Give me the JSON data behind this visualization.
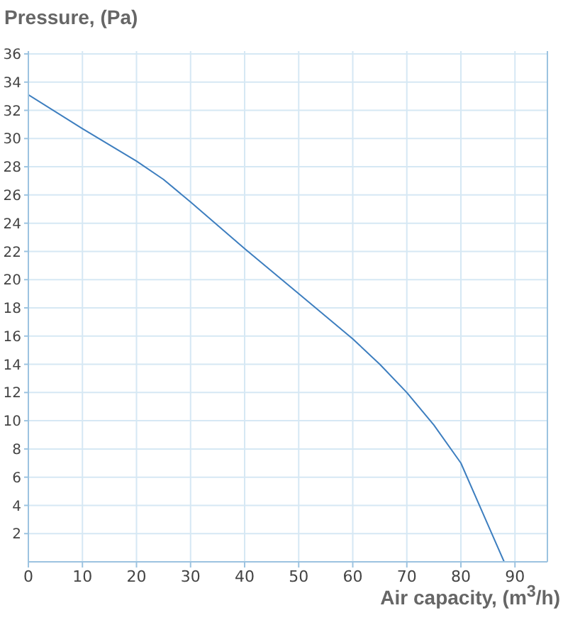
{
  "chart_data": {
    "type": "line",
    "ylabel": "Pressure, (Pa)",
    "xlabel": "Air capacity, (m$^{3}$/h)",
    "series": [
      {
        "color": "#3d7ebf",
        "x": [
          0,
          10,
          20,
          25,
          30,
          40,
          50,
          60,
          65,
          70,
          75,
          80,
          84,
          88
        ],
        "values": [
          33.1,
          30.7,
          28.4,
          27.1,
          25.5,
          22.2,
          19,
          15.8,
          14,
          12,
          9.7,
          7,
          3.5,
          0
        ]
      }
    ],
    "xlim": [
      0,
      96
    ],
    "xticks": [
      0,
      10,
      20,
      30,
      40,
      50,
      60,
      70,
      80,
      90
    ],
    "ylim": [
      0,
      36.2
    ],
    "yticks": [
      2,
      4,
      6,
      8,
      10,
      12,
      14,
      16,
      18,
      20,
      22,
      24,
      26,
      28,
      30,
      32,
      34,
      36
    ],
    "grid": true,
    "legend": false,
    "marker": "none",
    "line_style": "solid"
  }
}
